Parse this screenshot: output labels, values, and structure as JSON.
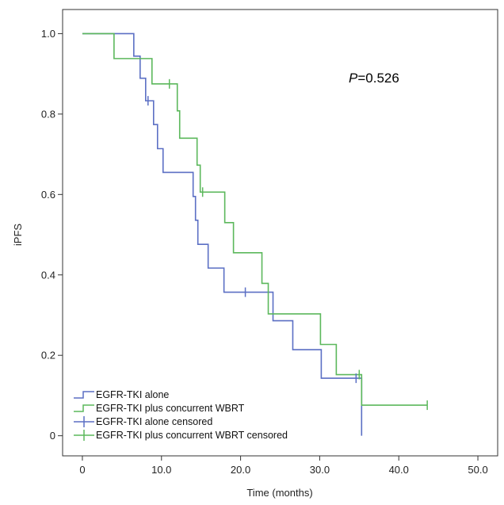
{
  "chart_data": {
    "type": "line",
    "subtype": "kaplan-meier",
    "xlabel": "Time (months)",
    "ylabel": "iPFS",
    "xlim": [
      -2.5,
      52.5
    ],
    "ylim": [
      -0.05,
      1.06
    ],
    "x_ticks": [
      0,
      10,
      20,
      30,
      40,
      50
    ],
    "x_tick_labels": [
      "0",
      "10.0",
      "20.0",
      "30.0",
      "40.0",
      "50.0"
    ],
    "y_ticks": [
      0,
      0.2,
      0.4,
      0.6,
      0.8,
      1.0
    ],
    "y_tick_labels": [
      "0",
      "0.2",
      "0.4",
      "0.6",
      "0.8",
      "1.0"
    ],
    "annotation": {
      "italic": "P",
      "text": "=0.526"
    },
    "legend_position": "bottom-left",
    "series": [
      {
        "name": "EGFR-TKI alone",
        "color": "#5b6fc4",
        "steps": [
          [
            0,
            1.0
          ],
          [
            6.5,
            0.944
          ],
          [
            7.3,
            0.889
          ],
          [
            8.0,
            0.833
          ],
          [
            9.0,
            0.774
          ],
          [
            9.5,
            0.714
          ],
          [
            10.2,
            0.655
          ],
          [
            14.0,
            0.595
          ],
          [
            14.3,
            0.536
          ],
          [
            14.6,
            0.476
          ],
          [
            15.9,
            0.417
          ],
          [
            17.9,
            0.357
          ],
          [
            24.1,
            0.286
          ],
          [
            26.6,
            0.214
          ],
          [
            30.2,
            0.143
          ],
          [
            35.3,
            0.0
          ]
        ],
        "end": 35.3
      },
      {
        "name": "EGFR-TKI plus concurrent WBRT",
        "color": "#5cb85c",
        "steps": [
          [
            0,
            1.0
          ],
          [
            4.0,
            0.938
          ],
          [
            8.8,
            0.875
          ],
          [
            12.0,
            0.808
          ],
          [
            12.3,
            0.74
          ],
          [
            14.5,
            0.673
          ],
          [
            14.9,
            0.606
          ],
          [
            18.0,
            0.53
          ],
          [
            19.1,
            0.455
          ],
          [
            22.7,
            0.379
          ],
          [
            23.5,
            0.303
          ],
          [
            30.1,
            0.227
          ],
          [
            32.1,
            0.152
          ],
          [
            35.3,
            0.076
          ]
        ],
        "end": 43.6
      }
    ],
    "censored": [
      {
        "name": "EGFR-TKI alone censored",
        "color": "#5b6fc4",
        "points": [
          [
            8.3,
            0.833
          ],
          [
            20.6,
            0.357
          ],
          [
            34.6,
            0.143
          ]
        ]
      },
      {
        "name": "EGFR-TKI plus concurrent WBRT censored",
        "color": "#5cb85c",
        "points": [
          [
            11.0,
            0.875
          ],
          [
            15.2,
            0.606
          ],
          [
            35.0,
            0.152
          ],
          [
            43.6,
            0.076
          ]
        ]
      }
    ]
  }
}
